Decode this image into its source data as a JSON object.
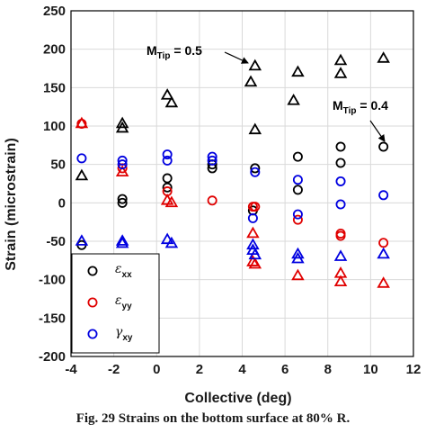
{
  "caption": "Fig. 29    Strains on the bottom surface at 80% R.",
  "chart_data": {
    "type": "scatter",
    "xlabel": "Collective (deg)",
    "ylabel": "Strain (microstrain)",
    "xlim": [
      -4,
      12
    ],
    "ylim": [
      -200,
      250
    ],
    "xticks": [
      -4,
      -2,
      0,
      2,
      4,
      6,
      8,
      10,
      12
    ],
    "yticks": [
      -200,
      -150,
      -100,
      -50,
      0,
      50,
      100,
      150,
      200,
      250
    ],
    "grid": true,
    "legend_position": "bottom-left",
    "series": [
      {
        "name": "ε",
        "name_sub": "xx",
        "color": "#000000",
        "circles": [
          [
            -3.5,
            -55
          ],
          [
            -1.6,
            0
          ],
          [
            -1.6,
            5
          ],
          [
            0.5,
            32
          ],
          [
            0.5,
            20
          ],
          [
            2.6,
            50
          ],
          [
            2.6,
            45
          ],
          [
            4.5,
            -10
          ],
          [
            4.6,
            45
          ],
          [
            6.6,
            60
          ],
          [
            6.6,
            17
          ],
          [
            8.6,
            73
          ],
          [
            8.6,
            52
          ],
          [
            10.6,
            73
          ]
        ],
        "triangles": [
          [
            -3.5,
            35
          ],
          [
            -1.6,
            103
          ],
          [
            -1.6,
            97
          ],
          [
            0.5,
            140
          ],
          [
            0.7,
            130
          ],
          [
            4.6,
            178
          ],
          [
            4.4,
            157
          ],
          [
            4.6,
            95
          ],
          [
            6.6,
            170
          ],
          [
            6.4,
            133
          ],
          [
            8.6,
            185
          ],
          [
            8.6,
            168
          ],
          [
            10.6,
            188
          ]
        ]
      },
      {
        "name": "ε",
        "name_sub": "yy",
        "color": "#e00000",
        "circles": [
          [
            -3.5,
            103
          ],
          [
            -1.6,
            45
          ],
          [
            0.5,
            15
          ],
          [
            2.6,
            3
          ],
          [
            4.5,
            -5
          ],
          [
            4.6,
            -5
          ],
          [
            6.6,
            -22
          ],
          [
            8.6,
            -40
          ],
          [
            8.6,
            -43
          ],
          [
            10.6,
            -52
          ]
        ],
        "triangles": [
          [
            -3.5,
            103
          ],
          [
            -1.6,
            40
          ],
          [
            0.5,
            3
          ],
          [
            0.7,
            0
          ],
          [
            4.5,
            -40
          ],
          [
            4.5,
            -77
          ],
          [
            4.6,
            -80
          ],
          [
            6.6,
            -95
          ],
          [
            8.6,
            -92
          ],
          [
            8.6,
            -103
          ],
          [
            10.6,
            -105
          ]
        ]
      },
      {
        "name": "γ",
        "name_sub": "xy",
        "color": "#0000e0",
        "circles": [
          [
            -3.5,
            58
          ],
          [
            -1.6,
            55
          ],
          [
            -1.6,
            50
          ],
          [
            0.5,
            63
          ],
          [
            0.5,
            55
          ],
          [
            2.6,
            60
          ],
          [
            2.6,
            55
          ],
          [
            4.5,
            -20
          ],
          [
            4.6,
            40
          ],
          [
            6.6,
            30
          ],
          [
            6.6,
            -15
          ],
          [
            8.6,
            28
          ],
          [
            8.6,
            -2
          ],
          [
            10.6,
            10
          ]
        ],
        "triangles": [
          [
            -3.5,
            -50
          ],
          [
            -1.6,
            -50
          ],
          [
            -1.6,
            -53
          ],
          [
            0.5,
            -48
          ],
          [
            0.7,
            -53
          ],
          [
            4.5,
            -55
          ],
          [
            4.5,
            -62
          ],
          [
            4.6,
            -68
          ],
          [
            6.6,
            -67
          ],
          [
            6.6,
            -73
          ],
          [
            8.6,
            -70
          ],
          [
            10.6,
            -67
          ]
        ]
      }
    ],
    "annotations": [
      {
        "label": "M",
        "sub": "Tip",
        "rest": " = 0.5",
        "target": [
          4.6,
          178
        ]
      },
      {
        "label": "M",
        "sub": "Tip",
        "rest": " = 0.4",
        "target": [
          10.6,
          73
        ]
      }
    ]
  }
}
